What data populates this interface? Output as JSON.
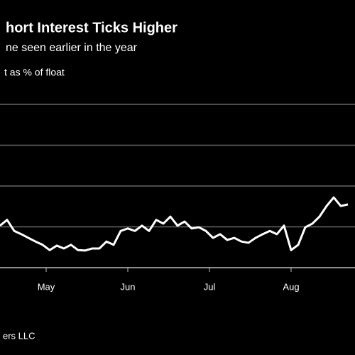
{
  "chart_data": {
    "type": "line",
    "title": "hort Interest Ticks Higher",
    "subtitle": "ne seen earlier in the year",
    "unit_label": "t as % of float",
    "source": "ers LLC",
    "xlim": [
      0,
      49
    ],
    "xticks": [
      {
        "value": 6.5,
        "label": "May"
      },
      {
        "value": 18,
        "label": "Jun"
      },
      {
        "value": 29.5,
        "label": "Jul"
      },
      {
        "value": 41,
        "label": "Aug"
      }
    ],
    "ylim": [
      0,
      4
    ],
    "yticks": [
      0,
      1,
      2,
      3,
      4
    ],
    "grid": true,
    "series": [
      {
        "color": "#ffffff",
        "values": [
          1.03,
          1.17,
          0.9,
          0.82,
          0.73,
          0.64,
          0.56,
          0.43,
          0.54,
          0.47,
          0.56,
          0.43,
          0.42,
          0.47,
          0.47,
          0.64,
          0.56,
          0.9,
          0.96,
          0.9,
          1.03,
          0.9,
          1.17,
          1.08,
          1.25,
          1.03,
          1.13,
          0.96,
          0.99,
          0.9,
          0.73,
          0.82,
          0.68,
          0.73,
          0.64,
          0.61,
          0.73,
          0.82,
          0.9,
          0.82,
          1.03,
          0.43,
          0.56,
          0.99,
          1.08,
          1.25,
          1.51,
          1.72,
          1.51,
          1.55
        ]
      }
    ]
  }
}
